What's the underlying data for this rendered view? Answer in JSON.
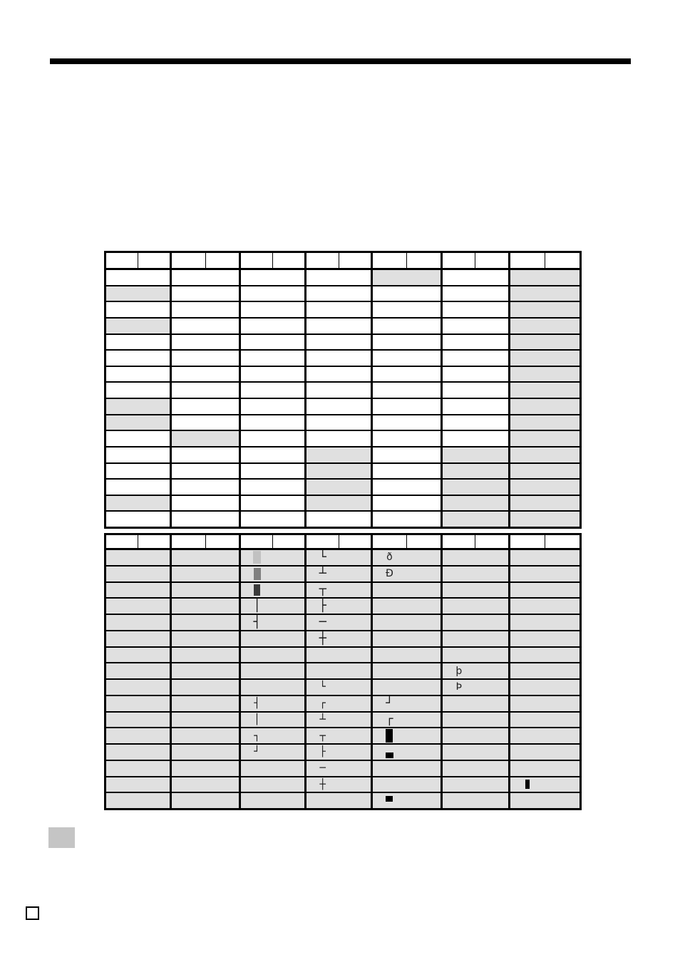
{
  "document": {
    "kind": "character-code-table-page",
    "visible_text": "",
    "notes": "two code tables; upper table cells empty with some shaded, lower table fully shaded with box-drawing glyphs"
  },
  "colors": {
    "cell_shade": "#e0e0e0",
    "table_border": "#000000",
    "top_rule": "#000000",
    "block_light": "#c1c1c1",
    "block_medium": "#7f7f7f",
    "block_dark": "#3b3b3b",
    "block_black": "#000000",
    "gray_square": "#c5c5c5"
  },
  "table_upper": {
    "groups": 7,
    "rows": 16,
    "header_cells_per_group": 2,
    "header_text": "",
    "all_body_shaded": false,
    "shaded_cells": [
      [
        1,
        5
      ],
      [
        1,
        7
      ],
      [
        2,
        1
      ],
      [
        2,
        7
      ],
      [
        3,
        7
      ],
      [
        4,
        1
      ],
      [
        4,
        7
      ],
      [
        5,
        7
      ],
      [
        6,
        7
      ],
      [
        7,
        7
      ],
      [
        8,
        7
      ],
      [
        9,
        1
      ],
      [
        9,
        7
      ],
      [
        10,
        1
      ],
      [
        10,
        7
      ],
      [
        11,
        2
      ],
      [
        11,
        7
      ],
      [
        12,
        4
      ],
      [
        12,
        6
      ],
      [
        12,
        7
      ],
      [
        13,
        4
      ],
      [
        13,
        6
      ],
      [
        13,
        7
      ],
      [
        14,
        4
      ],
      [
        14,
        6
      ],
      [
        14,
        7
      ],
      [
        15,
        1
      ],
      [
        15,
        4
      ],
      [
        15,
        6
      ],
      [
        15,
        7
      ],
      [
        16,
        6
      ],
      [
        16,
        7
      ]
    ],
    "glyphs": []
  },
  "table_lower": {
    "groups": 7,
    "rows": 16,
    "header_cells_per_group": 2,
    "header_text": "",
    "all_body_shaded": true,
    "shaded_cells": [],
    "glyphs": [
      {
        "row": 1,
        "group": 3,
        "type": "block",
        "variant": "light"
      },
      {
        "row": 2,
        "group": 3,
        "type": "block",
        "variant": "medium"
      },
      {
        "row": 3,
        "group": 3,
        "type": "block",
        "variant": "dark"
      },
      {
        "row": 4,
        "group": 3,
        "type": "char",
        "value": "│",
        "weight": "thin"
      },
      {
        "row": 5,
        "group": 3,
        "type": "char",
        "value": "┤",
        "weight": "thin"
      },
      {
        "row": 10,
        "group": 3,
        "type": "char",
        "value": "┤",
        "weight": "bold"
      },
      {
        "row": 11,
        "group": 3,
        "type": "char",
        "value": "│",
        "weight": "bold"
      },
      {
        "row": 12,
        "group": 3,
        "type": "char",
        "value": "┐",
        "weight": "bold"
      },
      {
        "row": 13,
        "group": 3,
        "type": "char",
        "value": "┘",
        "weight": "bold"
      },
      {
        "row": 1,
        "group": 4,
        "type": "char",
        "value": "└",
        "weight": "thin"
      },
      {
        "row": 2,
        "group": 4,
        "type": "char",
        "value": "┴",
        "weight": "thin"
      },
      {
        "row": 3,
        "group": 4,
        "type": "char",
        "value": "┬",
        "weight": "thin"
      },
      {
        "row": 4,
        "group": 4,
        "type": "char",
        "value": "├",
        "weight": "thin"
      },
      {
        "row": 5,
        "group": 4,
        "type": "char",
        "value": "─",
        "weight": "thin"
      },
      {
        "row": 6,
        "group": 4,
        "type": "char",
        "value": "┼",
        "weight": "thin"
      },
      {
        "row": 9,
        "group": 4,
        "type": "char",
        "value": "└",
        "weight": "bold"
      },
      {
        "row": 10,
        "group": 4,
        "type": "char",
        "value": "┌",
        "weight": "bold"
      },
      {
        "row": 11,
        "group": 4,
        "type": "char",
        "value": "┴",
        "weight": "bold"
      },
      {
        "row": 12,
        "group": 4,
        "type": "char",
        "value": "┬",
        "weight": "bold"
      },
      {
        "row": 13,
        "group": 4,
        "type": "char",
        "value": "├",
        "weight": "bold"
      },
      {
        "row": 14,
        "group": 4,
        "type": "char",
        "value": "─",
        "weight": "bold"
      },
      {
        "row": 15,
        "group": 4,
        "type": "char",
        "value": "┼",
        "weight": "bold"
      },
      {
        "row": 1,
        "group": 5,
        "type": "char",
        "value": "ð",
        "weight": "letter"
      },
      {
        "row": 2,
        "group": 5,
        "type": "char",
        "value": "Ð",
        "weight": "letter"
      },
      {
        "row": 10,
        "group": 5,
        "type": "char",
        "value": "┘",
        "weight": "thin"
      },
      {
        "row": 11,
        "group": 5,
        "type": "char",
        "value": "┌",
        "weight": "thin"
      },
      {
        "row": 12,
        "group": 5,
        "type": "block",
        "variant": "full"
      },
      {
        "row": 13,
        "group": 5,
        "type": "block",
        "variant": "lower"
      },
      {
        "row": 16,
        "group": 5,
        "type": "block",
        "variant": "upper"
      },
      {
        "row": 8,
        "group": 6,
        "type": "char",
        "value": "þ",
        "weight": "letter"
      },
      {
        "row": 9,
        "group": 6,
        "type": "char",
        "value": "Þ",
        "weight": "letter"
      },
      {
        "row": 15,
        "group": 7,
        "type": "block",
        "variant": "vbar"
      }
    ]
  },
  "decorations": {
    "top_rule": {
      "present": true
    },
    "gray_square": {
      "present": true
    },
    "corner_square": {
      "present": true
    }
  }
}
